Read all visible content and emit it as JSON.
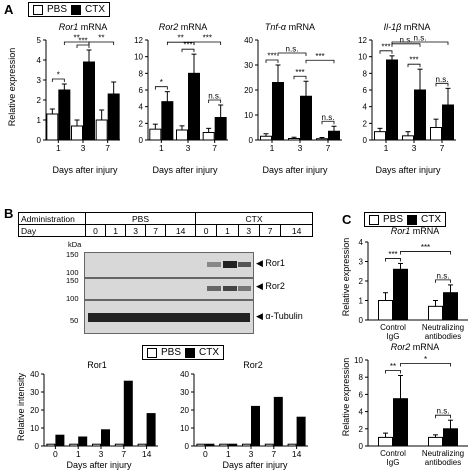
{
  "letters": {
    "a": "A",
    "b": "B",
    "c": "C"
  },
  "legend": {
    "pbs": "PBS",
    "ctx": "CTX"
  },
  "colors": {
    "pbs": "#ffffff",
    "ctx": "#000000",
    "axis": "#000000"
  },
  "panelA": {
    "ylabel": "Relative expression",
    "xlabel": "Days after injury",
    "titles": [
      {
        "gene": "Ror1",
        "suffix": " mRNA"
      },
      {
        "gene": "Ror2",
        "suffix": " mRNA"
      },
      {
        "gene": "Tnf-α",
        "suffix": " mRNA"
      },
      {
        "gene": "Il-1β",
        "suffix": " mRNA"
      }
    ]
  },
  "panelB": {
    "row1_label": "Administration",
    "row2_label": "Day",
    "groups": [
      "PBS",
      "CTX"
    ],
    "days": [
      "0",
      "1",
      "3",
      "7",
      "14",
      "0",
      "1",
      "3",
      "7",
      "14"
    ],
    "kda": "kDa",
    "markers": [
      "150",
      "100",
      "150",
      "100",
      "50"
    ],
    "bands": [
      "Ror1",
      "Ror2",
      "α-Tubulin"
    ],
    "bottom_ylabel": "Relative intensity",
    "bottom_xlabel": "Days after injury"
  },
  "panelC": {
    "ylabel": "Relative expression",
    "titles": [
      {
        "gene": "Ror1",
        "suffix": " mRNA"
      },
      {
        "gene": "Ror2",
        "suffix": " mRNA"
      }
    ],
    "categories": [
      "Control\nIgG",
      "Neutralizing\nantibodies"
    ]
  },
  "chart_data": [
    {
      "id": "A-Ror1",
      "type": "bar",
      "title": "Ror1 mRNA",
      "ylabel": "Relative expression",
      "xlabel": "Days after injury",
      "categories": [
        "1",
        "3",
        "7"
      ],
      "ylim": [
        0,
        5
      ],
      "yticks": [
        0,
        1,
        2,
        3,
        4,
        5
      ],
      "series": [
        {
          "name": "PBS",
          "values": [
            1.3,
            0.7,
            1.0
          ],
          "err": [
            0.25,
            0.3,
            0.5
          ]
        },
        {
          "name": "CTX",
          "values": [
            2.5,
            3.9,
            2.3
          ],
          "err": [
            0.3,
            0.6,
            0.6
          ]
        }
      ],
      "annotations": [
        {
          "from": [
            0,
            "PBS"
          ],
          "to": [
            0,
            "CTX"
          ],
          "text": "*"
        },
        {
          "from": [
            1,
            "PBS"
          ],
          "to": [
            1,
            "CTX"
          ],
          "text": "***"
        },
        {
          "from": [
            0,
            "CTX"
          ],
          "to": [
            1,
            "CTX"
          ],
          "text": "**"
        },
        {
          "from": [
            1,
            "CTX"
          ],
          "to": [
            2,
            "CTX"
          ],
          "text": "**"
        }
      ]
    },
    {
      "id": "A-Ror2",
      "type": "bar",
      "title": "Ror2 mRNA",
      "xlabel": "Days after injury",
      "categories": [
        "1",
        "3",
        "7"
      ],
      "ylim": [
        0,
        12
      ],
      "yticks": [
        0,
        2,
        4,
        6,
        8,
        10,
        12
      ],
      "series": [
        {
          "name": "PBS",
          "values": [
            1.3,
            1.2,
            0.9
          ],
          "err": [
            0.6,
            0.5,
            0.5
          ]
        },
        {
          "name": "CTX",
          "values": [
            4.6,
            8.0,
            2.7
          ],
          "err": [
            1.2,
            2.3,
            1.5
          ]
        }
      ],
      "annotations": [
        {
          "from": [
            0,
            "PBS"
          ],
          "to": [
            0,
            "CTX"
          ],
          "text": "*"
        },
        {
          "from": [
            1,
            "PBS"
          ],
          "to": [
            1,
            "CTX"
          ],
          "text": "***"
        },
        {
          "from": [
            0,
            "CTX"
          ],
          "to": [
            1,
            "CTX"
          ],
          "text": "**"
        },
        {
          "from": [
            1,
            "CTX"
          ],
          "to": [
            2,
            "CTX"
          ],
          "text": "***"
        },
        {
          "from": [
            2,
            "PBS"
          ],
          "to": [
            2,
            "CTX"
          ],
          "text": "n.s."
        }
      ]
    },
    {
      "id": "A-Tnf",
      "type": "bar",
      "title": "Tnf-α mRNA",
      "xlabel": "Days after injury",
      "categories": [
        "1",
        "3",
        "7"
      ],
      "ylim": [
        0,
        40
      ],
      "yticks": [
        0,
        10,
        20,
        30,
        40
      ],
      "series": [
        {
          "name": "PBS",
          "values": [
            1.5,
            0.6,
            0.5
          ],
          "err": [
            1.0,
            0.5,
            0.5
          ]
        },
        {
          "name": "CTX",
          "values": [
            23.0,
            17.5,
            3.5
          ],
          "err": [
            7.0,
            6.0,
            2.0
          ]
        }
      ],
      "annotations": [
        {
          "from": [
            0,
            "PBS"
          ],
          "to": [
            0,
            "CTX"
          ],
          "text": "***"
        },
        {
          "from": [
            1,
            "PBS"
          ],
          "to": [
            1,
            "CTX"
          ],
          "text": "***"
        },
        {
          "from": [
            0,
            "CTX"
          ],
          "to": [
            1,
            "CTX"
          ],
          "text": "n.s."
        },
        {
          "from": [
            1,
            "CTX"
          ],
          "to": [
            2,
            "CTX"
          ],
          "text": "***"
        },
        {
          "from": [
            2,
            "PBS"
          ],
          "to": [
            2,
            "CTX"
          ],
          "text": "n.s."
        }
      ]
    },
    {
      "id": "A-Il1b",
      "type": "bar",
      "title": "Il-1β mRNA",
      "xlabel": "Days after injury",
      "categories": [
        "1",
        "3",
        "7"
      ],
      "ylim": [
        0,
        12
      ],
      "yticks": [
        0,
        2,
        4,
        6,
        8,
        10,
        12
      ],
      "series": [
        {
          "name": "PBS",
          "values": [
            1.0,
            0.5,
            1.5
          ],
          "err": [
            0.4,
            0.5,
            1.0
          ]
        },
        {
          "name": "CTX",
          "values": [
            9.6,
            6.0,
            4.2
          ],
          "err": [
            0.5,
            2.5,
            2.0
          ]
        }
      ],
      "annotations": [
        {
          "from": [
            0,
            "PBS"
          ],
          "to": [
            0,
            "CTX"
          ],
          "text": "***"
        },
        {
          "from": [
            1,
            "PBS"
          ],
          "to": [
            1,
            "CTX"
          ],
          "text": "***"
        },
        {
          "from": [
            0,
            "CTX"
          ],
          "to": [
            1,
            "CTX"
          ],
          "text": "n.s."
        },
        {
          "from": [
            0,
            "CTX"
          ],
          "to": [
            2,
            "CTX"
          ],
          "text": "n.s."
        },
        {
          "from": [
            2,
            "PBS"
          ],
          "to": [
            2,
            "CTX"
          ],
          "text": "n.s."
        }
      ]
    },
    {
      "id": "B-Ror1",
      "type": "bar",
      "title": "Ror1",
      "ylabel": "Relative intensity",
      "xlabel": "Days after injury",
      "categories": [
        "0",
        "1",
        "3",
        "7",
        "14"
      ],
      "ylim": [
        0,
        40
      ],
      "yticks": [
        0,
        10,
        20,
        30,
        40
      ],
      "series": [
        {
          "name": "PBS",
          "values": [
            1.0,
            1.0,
            1.0,
            1.0,
            1.0
          ]
        },
        {
          "name": "CTX",
          "values": [
            6.0,
            5.0,
            9.0,
            36.0,
            18.0
          ]
        }
      ]
    },
    {
      "id": "B-Ror2",
      "type": "bar",
      "title": "Ror2",
      "xlabel": "Days after injury",
      "categories": [
        "0",
        "1",
        "3",
        "7",
        "14"
      ],
      "ylim": [
        0,
        40
      ],
      "yticks": [
        0,
        10,
        20,
        30,
        40
      ],
      "series": [
        {
          "name": "PBS",
          "values": [
            1.0,
            1.0,
            1.0,
            1.0,
            1.0
          ]
        },
        {
          "name": "CTX",
          "values": [
            1.0,
            1.0,
            22.0,
            27.0,
            16.0
          ]
        }
      ]
    },
    {
      "id": "C-Ror1",
      "type": "bar",
      "title": "Ror1 mRNA",
      "ylabel": "Relative expression",
      "categories": [
        "Control IgG",
        "Neutralizing antibodies"
      ],
      "ylim": [
        0,
        4
      ],
      "yticks": [
        0,
        1,
        2,
        3,
        4
      ],
      "series": [
        {
          "name": "PBS",
          "values": [
            1.0,
            0.7
          ],
          "err": [
            0.4,
            0.3
          ]
        },
        {
          "name": "CTX",
          "values": [
            2.6,
            1.4
          ],
          "err": [
            0.3,
            0.4
          ]
        }
      ],
      "annotations": [
        {
          "from": [
            0,
            "PBS"
          ],
          "to": [
            0,
            "CTX"
          ],
          "text": "***"
        },
        {
          "from": [
            0,
            "CTX"
          ],
          "to": [
            1,
            "CTX"
          ],
          "text": "***"
        },
        {
          "from": [
            1,
            "PBS"
          ],
          "to": [
            1,
            "CTX"
          ],
          "text": "n.s."
        }
      ]
    },
    {
      "id": "C-Ror2",
      "type": "bar",
      "title": "Ror2 mRNA",
      "ylabel": "Relative expression",
      "categories": [
        "Control IgG",
        "Neutralizing antibodies"
      ],
      "ylim": [
        0,
        10
      ],
      "yticks": [
        0,
        2,
        4,
        6,
        8,
        10
      ],
      "series": [
        {
          "name": "PBS",
          "values": [
            1.0,
            1.0
          ],
          "err": [
            0.5,
            0.3
          ]
        },
        {
          "name": "CTX",
          "values": [
            5.5,
            2.0
          ],
          "err": [
            2.7,
            1.0
          ]
        }
      ],
      "annotations": [
        {
          "from": [
            0,
            "PBS"
          ],
          "to": [
            0,
            "CTX"
          ],
          "text": "**"
        },
        {
          "from": [
            0,
            "CTX"
          ],
          "to": [
            1,
            "CTX"
          ],
          "text": "*"
        },
        {
          "from": [
            1,
            "PBS"
          ],
          "to": [
            1,
            "CTX"
          ],
          "text": "n.s."
        }
      ]
    }
  ]
}
